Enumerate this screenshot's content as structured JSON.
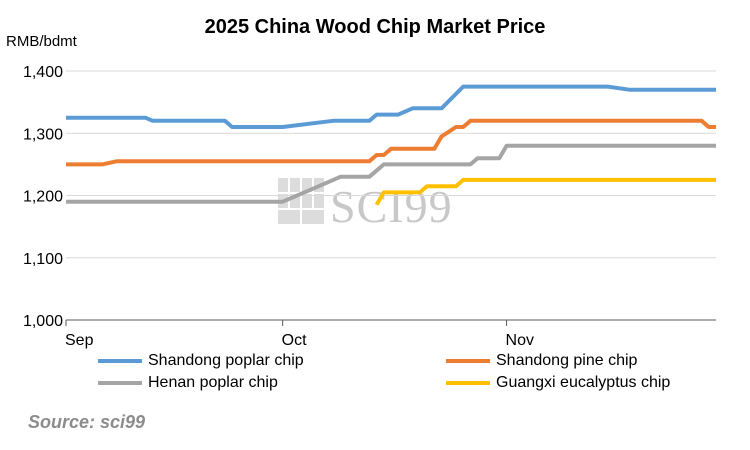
{
  "colors": {
    "grid": "#d9d9d9",
    "axis": "#595959",
    "Shandong poplar chip": "#5b9bd5",
    "Shandong pine chip": "#ed7d31",
    "Henan poplar chip": "#a5a5a5",
    "Guangxi eucalyptus chip": "#ffc000"
  },
  "watermark": "SCI99",
  "source": "Source: sci99",
  "chart_data": {
    "type": "line",
    "title": "2025 China Wood Chip Market Price",
    "ylabel": "RMB/bdmt",
    "xlabel": "",
    "xlim": [
      "2025-09-01",
      "2025-11-30"
    ],
    "xticks": [
      {
        "date": "2025-09-01",
        "label": "Sep"
      },
      {
        "date": "2025-10-01",
        "label": "Oct"
      },
      {
        "date": "2025-11-01",
        "label": "Nov"
      }
    ],
    "ylim": [
      1000,
      1400
    ],
    "yticks": [
      {
        "value": 1000,
        "label": "1,000"
      },
      {
        "value": 1100,
        "label": "1,100"
      },
      {
        "value": 1200,
        "label": "1,200"
      },
      {
        "value": 1300,
        "label": "1,300"
      },
      {
        "value": 1400,
        "label": "1,400"
      }
    ],
    "grid": true,
    "legend_position": "bottom",
    "series": [
      {
        "name": "Shandong poplar chip",
        "points": [
          [
            "2025-09-01",
            1325
          ],
          [
            "2025-09-12",
            1325
          ],
          [
            "2025-09-13",
            1320
          ],
          [
            "2025-09-23",
            1320
          ],
          [
            "2025-09-24",
            1310
          ],
          [
            "2025-10-01",
            1310
          ],
          [
            "2025-10-08",
            1320
          ],
          [
            "2025-10-13",
            1320
          ],
          [
            "2025-10-14",
            1330
          ],
          [
            "2025-10-17",
            1330
          ],
          [
            "2025-10-19",
            1340
          ],
          [
            "2025-10-23",
            1340
          ],
          [
            "2025-10-26",
            1375
          ],
          [
            "2025-11-15",
            1375
          ],
          [
            "2025-11-18",
            1370
          ],
          [
            "2025-11-30",
            1370
          ]
        ]
      },
      {
        "name": "Shandong pine chip",
        "points": [
          [
            "2025-09-01",
            1250
          ],
          [
            "2025-09-06",
            1250
          ],
          [
            "2025-09-08",
            1255
          ],
          [
            "2025-10-13",
            1255
          ],
          [
            "2025-10-14",
            1265
          ],
          [
            "2025-10-15",
            1265
          ],
          [
            "2025-10-16",
            1275
          ],
          [
            "2025-10-22",
            1275
          ],
          [
            "2025-10-23",
            1295
          ],
          [
            "2025-10-25",
            1310
          ],
          [
            "2025-10-26",
            1310
          ],
          [
            "2025-10-27",
            1320
          ],
          [
            "2025-11-28",
            1320
          ],
          [
            "2025-11-29",
            1310
          ],
          [
            "2025-11-30",
            1310
          ]
        ]
      },
      {
        "name": "Henan poplar chip",
        "points": [
          [
            "2025-09-01",
            1190
          ],
          [
            "2025-10-01",
            1190
          ],
          [
            "2025-10-06",
            1215
          ],
          [
            "2025-10-09",
            1230
          ],
          [
            "2025-10-13",
            1230
          ],
          [
            "2025-10-15",
            1250
          ],
          [
            "2025-10-27",
            1250
          ],
          [
            "2025-10-28",
            1260
          ],
          [
            "2025-10-31",
            1260
          ],
          [
            "2025-11-01",
            1280
          ],
          [
            "2025-11-30",
            1280
          ]
        ]
      },
      {
        "name": "Guangxi eucalyptus chip",
        "points": [
          [
            "2025-10-14",
            1185
          ],
          [
            "2025-10-15",
            1205
          ],
          [
            "2025-10-20",
            1205
          ],
          [
            "2025-10-21",
            1215
          ],
          [
            "2025-10-25",
            1215
          ],
          [
            "2025-10-26",
            1225
          ],
          [
            "2025-11-30",
            1225
          ]
        ]
      }
    ]
  }
}
